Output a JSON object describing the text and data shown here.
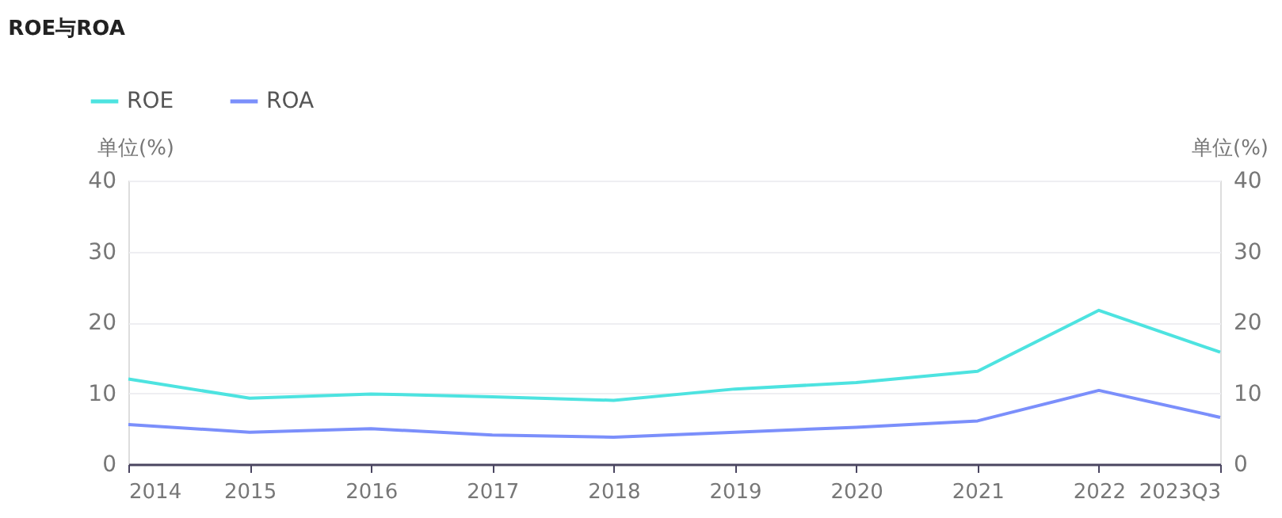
{
  "chart_data": {
    "type": "line",
    "title": "ROE与ROA",
    "categories": [
      "2014",
      "2015",
      "2016",
      "2017",
      "2018",
      "2019",
      "2020",
      "2021",
      "2022",
      "2023Q3"
    ],
    "series": [
      {
        "name": "ROE",
        "color": "#4de3e0",
        "values": [
          12.0,
          9.3,
          9.9,
          9.5,
          9.0,
          10.6,
          11.5,
          13.1,
          21.7,
          15.8
        ]
      },
      {
        "name": "ROA",
        "color": "#7b8ffb",
        "values": [
          5.6,
          4.5,
          5.0,
          4.1,
          3.8,
          4.5,
          5.2,
          6.1,
          10.4,
          6.6
        ]
      }
    ],
    "ylabel": "单位(%)",
    "y2label": "单位(%)",
    "ylim": [
      0,
      40
    ],
    "yticks": [
      0,
      10,
      20,
      30,
      40
    ],
    "y2lim": [
      0,
      40
    ],
    "y2ticks": [
      0,
      10,
      20,
      30,
      40
    ],
    "grid": "y",
    "legend": "top left",
    "marker": "none",
    "line_style": "solid"
  }
}
